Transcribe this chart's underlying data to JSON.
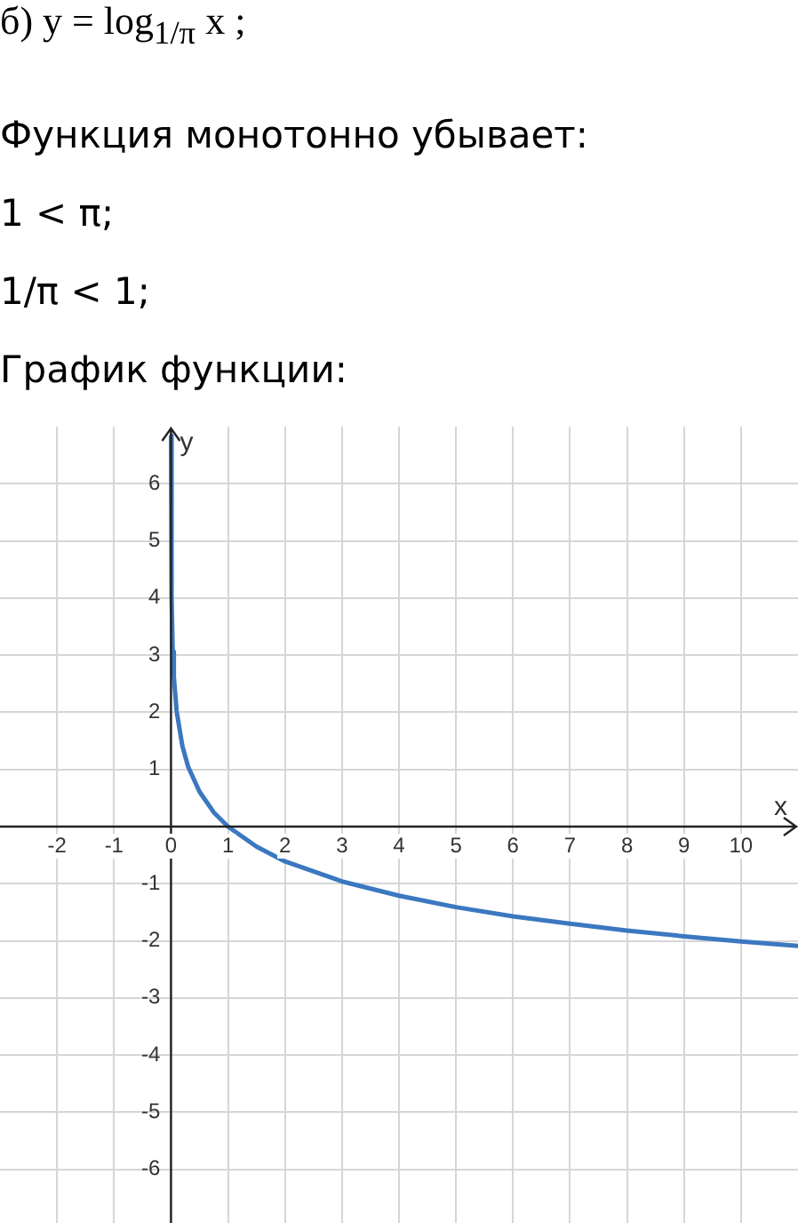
{
  "chart_data": {
    "type": "line",
    "title": "б) y = log$_{1/π}$ x ;",
    "annotations": [
      "Функция монотонно убывает:",
      "1 < π;",
      "1/π < 1;",
      "График функции:"
    ],
    "xlabel": "x",
    "ylabel": "y",
    "series": [
      {
        "color": "#3b78c0",
        "x": [
          0.0004,
          0.01,
          0.03,
          0.05,
          0.1,
          0.2,
          0.3,
          0.5,
          0.75,
          1,
          1.5,
          2,
          3,
          4,
          5,
          6,
          7,
          8,
          9,
          10,
          11
        ],
        "values": [
          6.84,
          4.02,
          3.06,
          2.62,
          2.01,
          1.41,
          1.05,
          0.61,
          0.25,
          0,
          -0.35,
          -0.61,
          -0.96,
          -1.21,
          -1.41,
          -1.57,
          -1.7,
          -1.82,
          -1.92,
          -2.01,
          -2.09
        ]
      }
    ],
    "xlim": [
      -3,
      11
    ],
    "ylim": [
      -7,
      7
    ],
    "xticks": [
      -2,
      -1,
      0,
      1,
      2,
      3,
      4,
      5,
      6,
      7,
      8,
      9,
      10
    ],
    "yticks": [
      -6,
      -5,
      -4,
      -3,
      -2,
      -1,
      {
        "value": 0,
        "label": null
      },
      1,
      2,
      3,
      4,
      5,
      6
    ],
    "grid": true,
    "marker": "none",
    "line_style": "solid",
    "legend": false
  }
}
